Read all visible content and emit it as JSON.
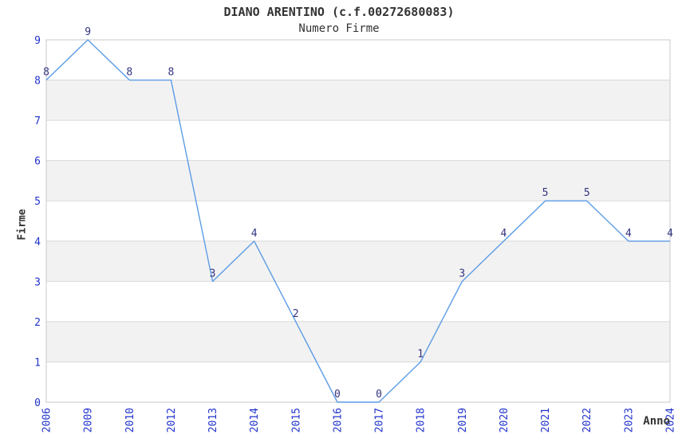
{
  "title": "DIANO ARENTINO (c.f.00272680083)",
  "subtitle": "Numero Firme",
  "chart_data": {
    "type": "line",
    "title": "DIANO ARENTINO (c.f.00272680083)",
    "subtitle": "Numero Firme",
    "xlabel": "Anno",
    "ylabel": "Firme",
    "categories": [
      "2006",
      "2009",
      "2010",
      "2012",
      "2013",
      "2014",
      "2015",
      "2016",
      "2017",
      "2018",
      "2019",
      "2020",
      "2021",
      "2022",
      "2023",
      "2024"
    ],
    "values": [
      8,
      9,
      8,
      8,
      3,
      4,
      2,
      0,
      0,
      1,
      3,
      4,
      5,
      5,
      4,
      4
    ],
    "ylim": [
      0,
      9
    ],
    "y_ticks": [
      0,
      1,
      2,
      3,
      4,
      5,
      6,
      7,
      8,
      9
    ],
    "grid": "horizontal-bands",
    "legend": "none",
    "point_labels_visible": true,
    "colors": {
      "line": "#5c9ce6",
      "point_label": "#333380",
      "tick_label": "#2233cc",
      "band_gray": "#f2f2f2",
      "band_white": "#ffffff",
      "gridline": "#d9d9d9",
      "plot_border": "#c9c9c9",
      "text": "#333333"
    }
  }
}
